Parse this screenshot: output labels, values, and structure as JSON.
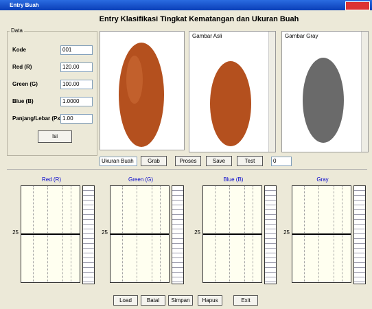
{
  "window": {
    "title": "Entry Buah"
  },
  "header": {
    "title": "Entry Klasifikasi Tingkat Kematangan dan Ukuran Buah"
  },
  "form": {
    "group": "Data",
    "fields": [
      {
        "label": "Kode",
        "value": "001"
      },
      {
        "label": "Red (R)",
        "value": "120.00"
      },
      {
        "label": "Green (G)",
        "value": "100.00"
      },
      {
        "label": "Blue (B)",
        "value": "1.0000"
      },
      {
        "label": "Panjang/Lebar (Px)",
        "value": "1.00"
      }
    ],
    "button": "Isi"
  },
  "images": [
    {
      "label": ""
    },
    {
      "label": "Gambar Asli"
    },
    {
      "label": "Gambar Gray"
    }
  ],
  "controls": {
    "combo": "Ukuran Buah",
    "buttons": [
      "Grab",
      "Proses",
      "Save",
      "Test"
    ],
    "input": "0"
  },
  "histograms": [
    {
      "title": "Red (R)",
      "y_label": "25"
    },
    {
      "title": "Green (G)",
      "y_label": "25"
    },
    {
      "title": "Blue (B)",
      "y_label": "25"
    },
    {
      "title": "Gray",
      "y_label": "25"
    }
  ],
  "footer": {
    "buttons": [
      "Load",
      "Batal",
      "Simpan",
      "Hapus",
      "Exit"
    ]
  }
}
